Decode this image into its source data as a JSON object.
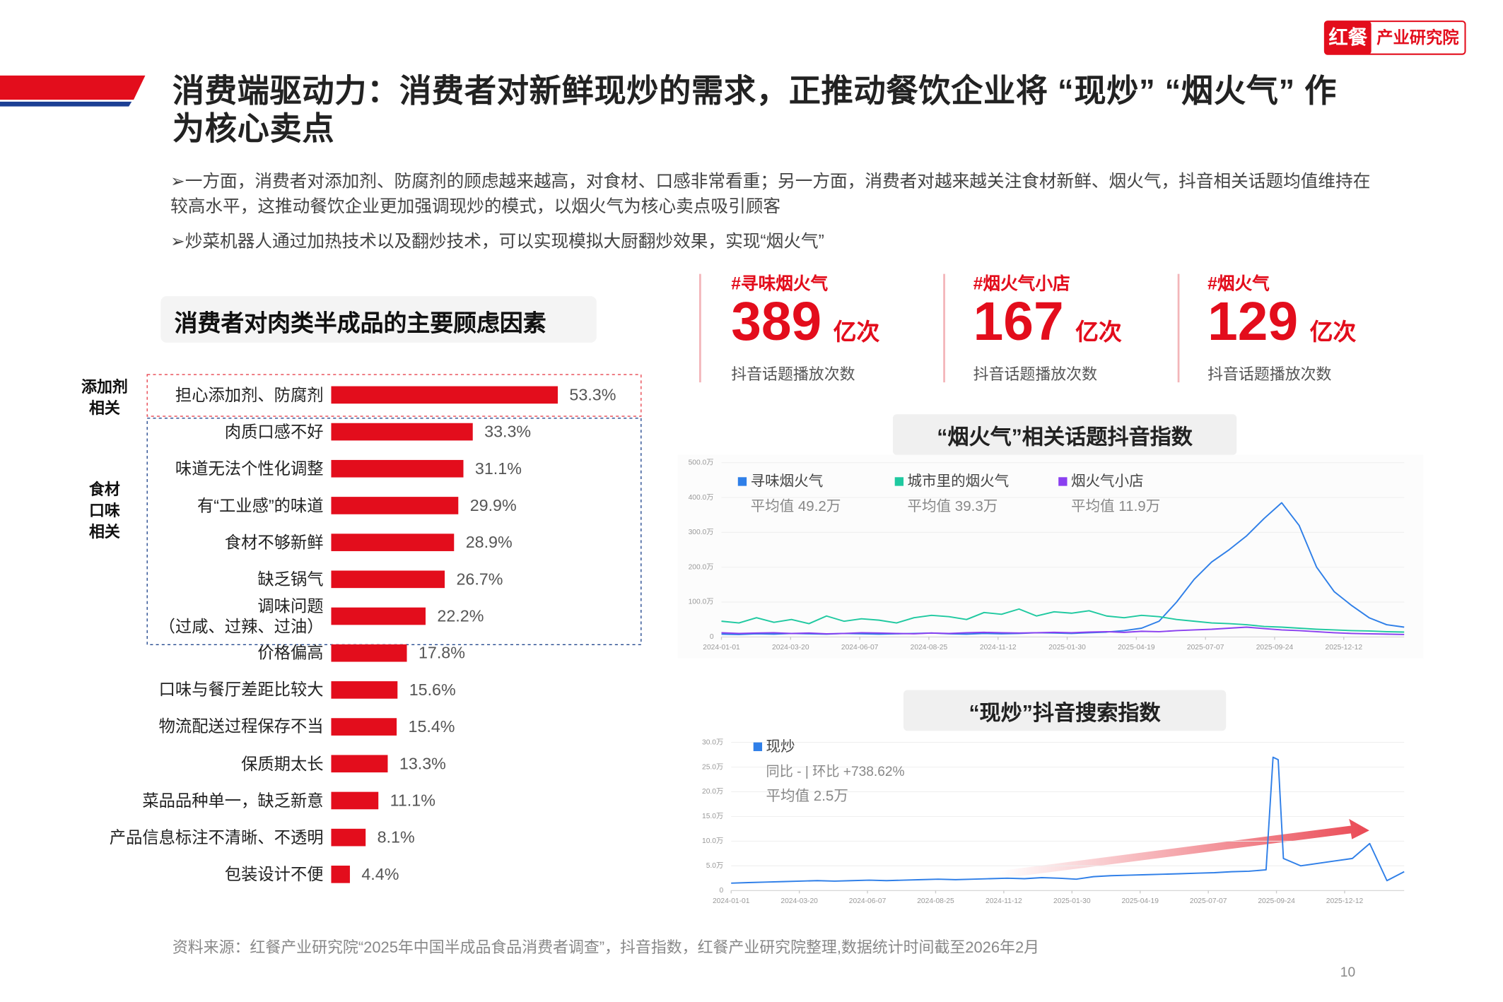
{
  "logo": {
    "brand": "红餐",
    "unit": "产业研究院"
  },
  "title": "消费端驱动力：消费者对新鲜现炒的需求，正推动餐饮企业将 “现炒” “烟火气” 作为核心卖点",
  "bullets": [
    "➢一方面，消费者对添加剂、防腐剂的顾虑越来越高，对食材、口感非常看重；另一方面，消费者对越来越关注食材新鲜、烟火气，抖音相关话题均值维持在较高水平，这推动餐饮企业更加强调现炒的模式，以烟火气为核心卖点吸引顾客",
    "➢炒菜机器人通过加热技术以及翻炒技术，可以实现模拟大厨翻炒效果，实现“烟火气”"
  ],
  "stats": [
    {
      "tag": "#寻味烟火气",
      "number": "389",
      "unit": "亿次",
      "caption": "抖音话题播放次数"
    },
    {
      "tag": "#烟火气小店",
      "number": "167",
      "unit": "亿次",
      "caption": "抖音话题播放次数"
    },
    {
      "tag": "#烟火气",
      "number": "129",
      "unit": "亿次",
      "caption": "抖音话题播放次数"
    }
  ],
  "chart_data": [
    {
      "type": "bar",
      "orientation": "horizontal",
      "title": "消费者对肉类半成品的主要顾虑因素",
      "color": "#e30d1c",
      "groups": [
        {
          "label": "添加剂\n相关"
        },
        {
          "label": "食材\n口味\n相关"
        }
      ],
      "categories": [
        "担心添加剂、防腐剂",
        "肉质口感不好",
        "味道无法个性化调整",
        "有“工业感”的味道",
        "食材不够新鲜",
        "缺乏锅气",
        "调味问题\n（过咸、过辣、过油）",
        "价格偏高",
        "口味与餐厅差距比较大",
        "物流配送过程保存不当",
        "保质期太长",
        "菜品品种单一，缺乏新意",
        "产品信息标注不清晰、不透明",
        "包装设计不便"
      ],
      "values": [
        53.3,
        33.3,
        31.1,
        29.9,
        28.9,
        26.7,
        22.2,
        17.8,
        15.6,
        15.4,
        13.3,
        11.1,
        8.1,
        4.4
      ],
      "value_labels": [
        "53.3%",
        "33.3%",
        "31.1%",
        "29.9%",
        "28.9%",
        "26.7%",
        "22.2%",
        "17.8%",
        "15.6%",
        "15.4%",
        "13.3%",
        "11.1%",
        "8.1%",
        "4.4%"
      ]
    },
    {
      "type": "line",
      "title": "“烟火气”相关话题抖音指数",
      "x": [
        "2024-01-01",
        "2024-01-21",
        "2024-02-10",
        "2024-03-01",
        "2024-03-21",
        "2024-04-10",
        "2024-04-30",
        "2024-05-20",
        "2024-06-09",
        "2024-06-29",
        "2024-07-19",
        "2024-08-08",
        "2024-08-28",
        "2024-09-17",
        "2024-10-07",
        "2024-10-27",
        "2024-11-16",
        "2024-12-06",
        "2024-12-26",
        "2025-01-15",
        "2025-02-04",
        "2025-02-24",
        "2025-03-16",
        "2025-04-05",
        "2025-04-25",
        "2025-05-15",
        "2025-06-04",
        "2025-06-24",
        "2025-07-14",
        "2025-08-03",
        "2025-08-23",
        "2025-09-12",
        "2025-10-02",
        "2025-10-22",
        "2025-11-11",
        "2025-12-01",
        "2025-12-21",
        "2026-01-10",
        "2026-01-30",
        "2026-02-19"
      ],
      "xlim": [
        "2024-01-01",
        "2026-02-19"
      ],
      "xticks": [
        "2024-01-01",
        "2024-03-20",
        "2024-06-07",
        "2024-08-25",
        "2024-11-12",
        "2025-01-30",
        "2025-04-19",
        "2025-07-07",
        "2025-09-24",
        "2025-12-12"
      ],
      "ylim": [
        0,
        500
      ],
      "yticks": [
        0,
        {
          "value": 100,
          "label": "100.0万"
        },
        {
          "value": 200,
          "label": "200.0万"
        },
        {
          "value": 300,
          "label": "300.0万"
        },
        {
          "value": 400,
          "label": "400.0万"
        },
        {
          "value": 500,
          "label": "500.0万"
        }
      ],
      "series": [
        {
          "name": "寻味烟火气",
          "color": "#2f7fe8",
          "average_label": "平均值 49.2万",
          "values": [
            8,
            7,
            9,
            8,
            10,
            9,
            8,
            10,
            9,
            8,
            9,
            10,
            11,
            9,
            8,
            10,
            9,
            10,
            12,
            11,
            10,
            12,
            14,
            18,
            25,
            45,
            100,
            165,
            215,
            250,
            290,
            340,
            385,
            320,
            200,
            130,
            90,
            55,
            35,
            28
          ]
        },
        {
          "name": "城市里的烟火气",
          "color": "#1fc9a0",
          "average_label": "平均值 39.3万",
          "values": [
            45,
            40,
            55,
            42,
            50,
            38,
            60,
            45,
            52,
            48,
            40,
            55,
            62,
            58,
            50,
            70,
            65,
            80,
            60,
            72,
            68,
            75,
            60,
            55,
            62,
            58,
            50,
            45,
            40,
            38,
            35,
            30,
            28,
            25,
            22,
            20,
            18,
            17,
            15,
            14
          ]
        },
        {
          "name": "烟火气小店",
          "color": "#8a3ff0",
          "average_label": "平均值 11.9万",
          "values": [
            12,
            10,
            11,
            12,
            10,
            11,
            9,
            10,
            12,
            11,
            10,
            9,
            11,
            10,
            12,
            13,
            12,
            11,
            12,
            13,
            12,
            14,
            15,
            13,
            16,
            15,
            18,
            20,
            22,
            25,
            28,
            24,
            20,
            18,
            15,
            12,
            10,
            9,
            8,
            7
          ]
        }
      ]
    },
    {
      "type": "line",
      "title": "“现炒”抖音搜索指数",
      "x": [
        "2024-01-01",
        "2024-01-21",
        "2024-02-10",
        "2024-03-01",
        "2024-03-21",
        "2024-04-10",
        "2024-04-30",
        "2024-05-20",
        "2024-06-09",
        "2024-06-29",
        "2024-07-19",
        "2024-08-08",
        "2024-08-28",
        "2024-09-17",
        "2024-10-07",
        "2024-10-27",
        "2024-11-16",
        "2024-12-06",
        "2024-12-26",
        "2025-01-15",
        "2025-02-04",
        "2025-02-24",
        "2025-03-16",
        "2025-04-05",
        "2025-04-25",
        "2025-05-15",
        "2025-06-04",
        "2025-06-24",
        "2025-07-14",
        "2025-08-03",
        "2025-08-23",
        "2025-09-12",
        "2025-09-20",
        "2025-09-26",
        "2025-10-02",
        "2025-10-22",
        "2025-11-11",
        "2025-12-01",
        "2025-12-21",
        "2026-01-10",
        "2026-01-30",
        "2026-02-19"
      ],
      "xlim": [
        "2024-01-01",
        "2026-02-19"
      ],
      "xticks": [
        "2024-01-01",
        "2024-03-20",
        "2024-06-07",
        "2024-08-25",
        "2024-11-12",
        "2025-01-30",
        "2025-04-19",
        "2025-07-07",
        "2025-09-24",
        "2025-12-12"
      ],
      "ylim": [
        0,
        30
      ],
      "yticks": [
        0,
        {
          "value": 5,
          "label": "5.0万"
        },
        {
          "value": 10,
          "label": "10.0万"
        },
        {
          "value": 15,
          "label": "15.0万"
        },
        {
          "value": 20,
          "label": "20.0万"
        },
        {
          "value": 25,
          "label": "25.0万"
        },
        {
          "value": 30,
          "label": "30.0万"
        }
      ],
      "series": [
        {
          "name": "现炒",
          "color": "#2f7fe8",
          "change_label": "同比 - | 环比 +738.62%",
          "average_label": "平均值 2.5万",
          "values": [
            1.5,
            1.6,
            1.7,
            1.8,
            1.9,
            2.0,
            1.9,
            2.0,
            2.1,
            2.0,
            2.1,
            2.2,
            2.3,
            2.2,
            2.3,
            2.4,
            2.5,
            2.4,
            2.6,
            2.5,
            2.3,
            2.8,
            3.0,
            3.1,
            3.2,
            3.3,
            3.4,
            3.5,
            3.6,
            3.8,
            3.9,
            4.2,
            27,
            26.5,
            6.5,
            5.0,
            5.5,
            6.0,
            6.5,
            9.5,
            2.0,
            3.8
          ]
        }
      ]
    }
  ],
  "source": "资料来源：红餐产业研究院“2025年中国半成品食品消费者调查”，抖音指数，红餐产业研究院整理,数据统计时间截至2026年2月",
  "page_number": "10"
}
